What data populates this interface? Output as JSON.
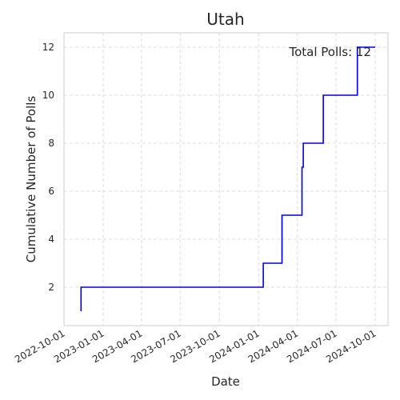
{
  "chart_data": {
    "type": "line",
    "step": true,
    "title": "Utah",
    "xlabel": "Date",
    "ylabel": "Cumulative Number of Polls",
    "xlim": [
      "2022-10-01",
      "2024-10-31"
    ],
    "ylim": [
      0.4,
      12.6
    ],
    "x_ticks": [
      "2022-10-01",
      "2023-01-01",
      "2023-04-01",
      "2023-07-01",
      "2023-10-01",
      "2024-01-01",
      "2024-04-01",
      "2024-07-01",
      "2024-10-01"
    ],
    "y_ticks": [
      2,
      4,
      6,
      8,
      10,
      12
    ],
    "grid": true,
    "annotation": "Total Polls: 12",
    "series": [
      {
        "color": "#0000dd",
        "x": [
          "2022-11-10",
          "2022-11-10",
          "2024-01-12",
          "2024-02-25",
          "2024-04-12",
          "2024-04-15",
          "2024-06-01",
          "2024-08-20",
          "2024-08-20",
          "2024-10-01"
        ],
        "y": [
          1,
          2,
          3,
          5,
          7,
          8,
          10,
          11,
          12,
          12
        ]
      }
    ]
  }
}
